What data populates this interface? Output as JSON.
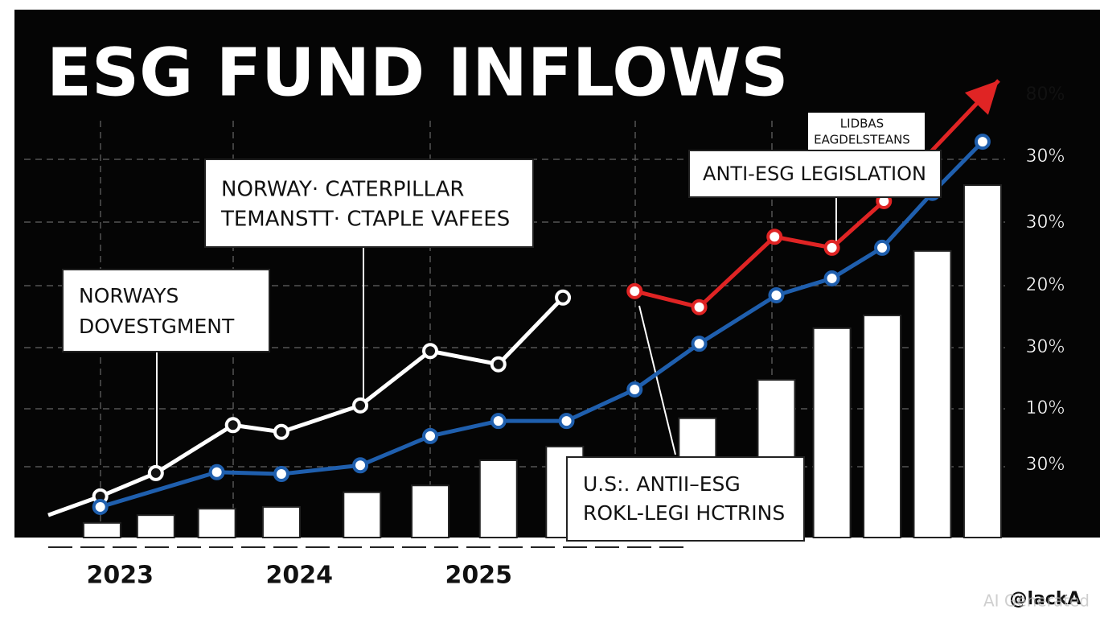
{
  "chart_data": {
    "type": "line",
    "title": "ESG FUND INFLOWS",
    "xlim": [
      2022.6,
      2027.9
    ],
    "ylim": [
      0,
      100
    ],
    "xticks": [
      2023,
      2024,
      2025
    ],
    "bars": {
      "color": "#ffffff",
      "x": [
        2022.9,
        2023.2,
        2023.54,
        2023.9,
        2024.35,
        2024.73,
        2025.11,
        2025.48,
        2026.22,
        2026.66,
        2026.97,
        2027.25,
        2027.53,
        2027.81
      ],
      "values": [
        3.2,
        4.9,
        6.3,
        6.7,
        9.9,
        11.4,
        16.9,
        19.9,
        26.1,
        34.5,
        45.8,
        48.6,
        62.7,
        77.1
      ]
    },
    "series": [
      {
        "color": "#ffffff",
        "x": [
          2022.6,
          2022.89,
          2023.2,
          2023.63,
          2023.9,
          2024.34,
          2024.73,
          2025.11,
          2025.47
        ],
        "values": [
          4.9,
          9.0,
          14.1,
          24.6,
          23.1,
          28.9,
          40.8,
          37.9,
          52.5
        ]
      },
      {
        "color": "#1f5fae",
        "x": [
          2022.89,
          2023.54,
          2023.9,
          2024.34,
          2024.73,
          2025.11,
          2025.49,
          2025.87,
          2026.23,
          2026.66,
          2026.97,
          2027.25,
          2027.53,
          2027.81
        ],
        "values": [
          6.7,
          14.3,
          13.9,
          15.8,
          22.2,
          25.5,
          25.5,
          32.4,
          42.4,
          53.0,
          56.7,
          63.4,
          75.4,
          86.6
        ]
      },
      {
        "color": "#e02424",
        "x": [
          2025.87,
          2026.23,
          2026.65,
          2026.97,
          2027.26,
          2027.9
        ],
        "values": [
          53.9,
          50.4,
          65.8,
          63.4,
          73.6,
          100
        ]
      }
    ],
    "side_labels": [
      "80%",
      "30%",
      "30%",
      "20%",
      "30%",
      "10%",
      "30%"
    ],
    "annotations": [
      {
        "lines": [
          "NORWAYS",
          "DOVESTGMENT"
        ]
      },
      {
        "lines": [
          "NORWAY· CATERPILLAR",
          "TEMANSTT· CTAPLE VAFEES"
        ]
      },
      {
        "lines": [
          "ANTI-ESG LEGISLATION"
        ]
      },
      {
        "lines": [
          "U.S:. ANTII–ESG",
          "ROKL-LEGI HCTRINS"
        ]
      }
    ],
    "small_note": [
      "LIDBAS",
      "EAGDELSTEANS"
    ],
    "signature": "@lackA",
    "watermark": "AI Generated"
  }
}
